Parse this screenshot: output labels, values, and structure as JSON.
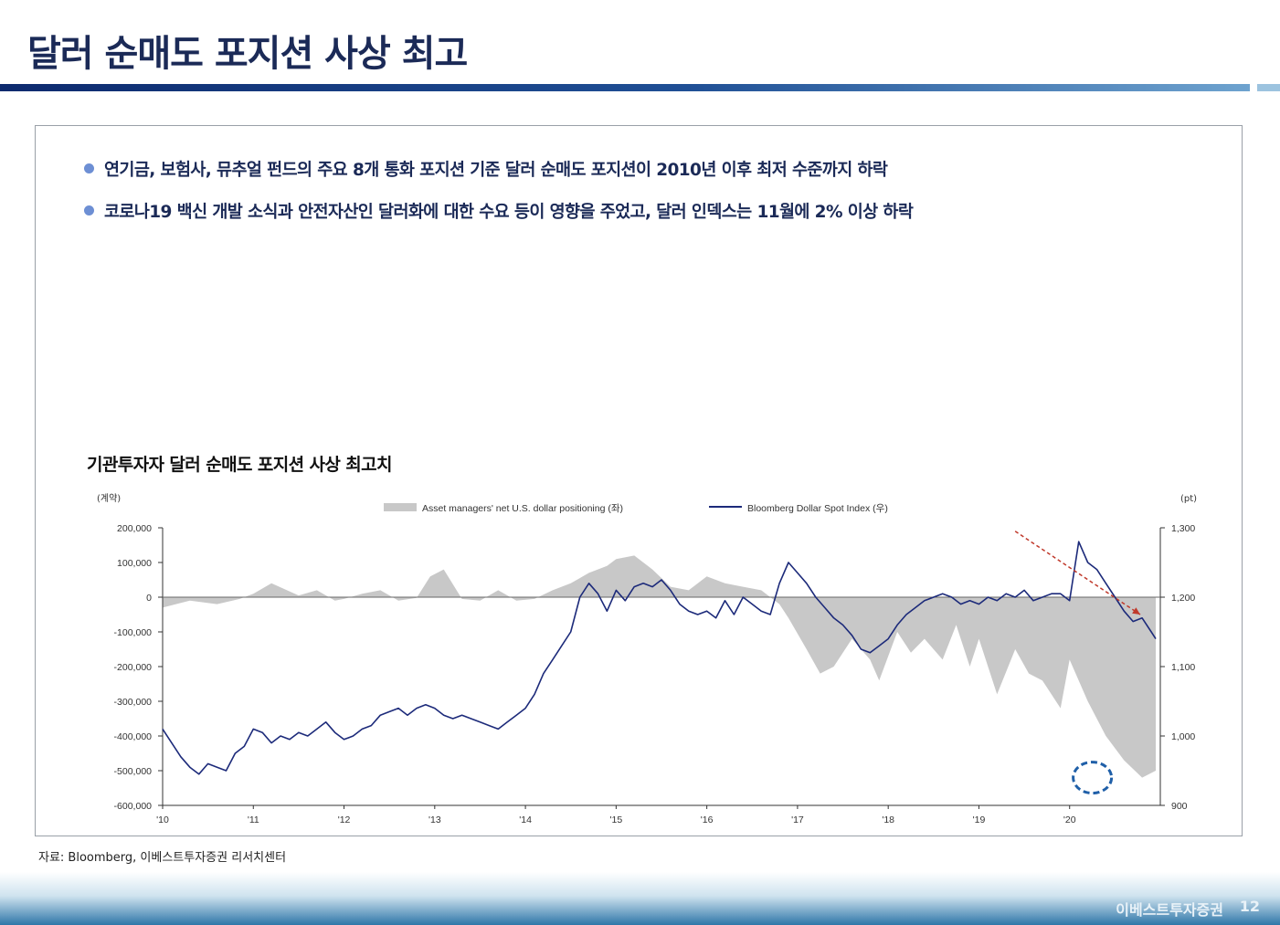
{
  "slide": {
    "title": "달러 순매도 포지션 사상 최고",
    "bullets": [
      "연기금, 보험사, 뮤추얼 펀드의 주요 8개 통화 포지션 기준 달러 순매도 포지션이 2010년 이후 최저 수준까지 하락",
      "코로나19 백신 개발 소식과 안전자산인 달러화에 대한 수요 등이 영향을 주었고, 달러 인덱스는 11월에 2% 이상 하락"
    ],
    "chart_title": "기관투자자 달러 순매도 포지션 사상 최고치",
    "source": "자료: Bloomberg, 이베스트투자증권 리서치센터",
    "footer_brand": "이베스트투자증권",
    "page_number": "12"
  },
  "colors": {
    "title": "#1b2a57",
    "area": "#c8c8c8",
    "line": "#1c2a7a",
    "arrow": "#c0392b",
    "circle": "#1f5fa8",
    "bullet_dot": "#6d8fd4"
  },
  "chart_data": {
    "type": "line",
    "left_unit": "(계약)",
    "right_unit": "(pt)",
    "legend": {
      "placement": "top-center",
      "area_label": "Asset managers' net U.S. dollar positioning (좌)",
      "line_label": "Bloomberg Dollar Spot Index (우)"
    },
    "x_ticks": [
      "'10",
      "'11",
      "'12",
      "'13",
      "'14",
      "'15",
      "'16",
      "'17",
      "'18",
      "'19",
      "'20"
    ],
    "x_range": [
      2010.0,
      2021.0
    ],
    "y_left": {
      "range": [
        -600000,
        200000
      ],
      "ticks": [
        "200,000",
        "100,000",
        "0",
        "-100,000",
        "-200,000",
        "-300,000",
        "-400,000",
        "-500,000",
        "-600,000"
      ],
      "tick_values": [
        200000,
        100000,
        0,
        -100000,
        -200000,
        -300000,
        -400000,
        -500000,
        -600000
      ]
    },
    "y_right": {
      "range": [
        900,
        1300
      ],
      "ticks": [
        "1,300",
        "1,200",
        "1,100",
        "1,000",
        "900"
      ],
      "tick_values": [
        1300,
        1200,
        1100,
        1000,
        900
      ]
    },
    "series": [
      {
        "name": "Asset managers' net U.S. dollar positioning (좌)",
        "axis": "left",
        "style": "area",
        "x": [
          2010.0,
          2010.3,
          2010.6,
          2010.85,
          2011.0,
          2011.2,
          2011.5,
          2011.7,
          2011.9,
          2012.0,
          2012.2,
          2012.4,
          2012.6,
          2012.8,
          2012.95,
          2013.1,
          2013.3,
          2013.5,
          2013.7,
          2013.9,
          2014.1,
          2014.3,
          2014.5,
          2014.7,
          2014.9,
          2015.0,
          2015.2,
          2015.4,
          2015.6,
          2015.8,
          2016.0,
          2016.2,
          2016.4,
          2016.6,
          2016.8,
          2016.9,
          2017.1,
          2017.25,
          2017.4,
          2017.6,
          2017.8,
          2017.9,
          2018.1,
          2018.25,
          2018.4,
          2018.6,
          2018.75,
          2018.9,
          2019.0,
          2019.2,
          2019.4,
          2019.55,
          2019.7,
          2019.9,
          2020.0,
          2020.2,
          2020.4,
          2020.6,
          2020.8,
          2020.95
        ],
        "y": [
          -30000,
          -10000,
          -20000,
          -5000,
          10000,
          40000,
          5000,
          20000,
          -10000,
          -5000,
          10000,
          20000,
          -10000,
          -2000,
          60000,
          80000,
          -5000,
          -10000,
          20000,
          -10000,
          -5000,
          20000,
          40000,
          70000,
          90000,
          110000,
          120000,
          80000,
          30000,
          20000,
          60000,
          40000,
          30000,
          20000,
          -20000,
          -60000,
          -150000,
          -220000,
          -200000,
          -120000,
          -180000,
          -240000,
          -100000,
          -160000,
          -120000,
          -180000,
          -80000,
          -200000,
          -120000,
          -280000,
          -150000,
          -220000,
          -240000,
          -320000,
          -180000,
          -300000,
          -400000,
          -470000,
          -520000,
          -500000
        ]
      },
      {
        "name": "Bloomberg Dollar Spot Index (우)",
        "axis": "right",
        "style": "line",
        "x": [
          2010.0,
          2010.1,
          2010.2,
          2010.3,
          2010.4,
          2010.5,
          2010.6,
          2010.7,
          2010.8,
          2010.9,
          2011.0,
          2011.1,
          2011.2,
          2011.3,
          2011.4,
          2011.5,
          2011.6,
          2011.7,
          2011.8,
          2011.9,
          2012.0,
          2012.1,
          2012.2,
          2012.3,
          2012.4,
          2012.5,
          2012.6,
          2012.7,
          2012.8,
          2012.9,
          2013.0,
          2013.1,
          2013.2,
          2013.3,
          2013.4,
          2013.5,
          2013.6,
          2013.7,
          2013.8,
          2013.9,
          2014.0,
          2014.1,
          2014.2,
          2014.3,
          2014.4,
          2014.5,
          2014.6,
          2014.7,
          2014.8,
          2014.9,
          2015.0,
          2015.1,
          2015.2,
          2015.3,
          2015.4,
          2015.5,
          2015.6,
          2015.7,
          2015.8,
          2015.9,
          2016.0,
          2016.1,
          2016.2,
          2016.3,
          2016.4,
          2016.5,
          2016.6,
          2016.7,
          2016.8,
          2016.9,
          2017.0,
          2017.1,
          2017.2,
          2017.3,
          2017.4,
          2017.5,
          2017.6,
          2017.7,
          2017.8,
          2017.9,
          2018.0,
          2018.1,
          2018.2,
          2018.3,
          2018.4,
          2018.5,
          2018.6,
          2018.7,
          2018.8,
          2018.9,
          2019.0,
          2019.1,
          2019.2,
          2019.3,
          2019.4,
          2019.5,
          2019.6,
          2019.7,
          2019.8,
          2019.9,
          2020.0,
          2020.1,
          2020.2,
          2020.3,
          2020.4,
          2020.5,
          2020.6,
          2020.7,
          2020.8,
          2020.9,
          2020.95
        ],
        "y": [
          1010,
          990,
          970,
          955,
          945,
          960,
          955,
          950,
          975,
          985,
          1010,
          1005,
          990,
          1000,
          995,
          1005,
          1000,
          1010,
          1020,
          1005,
          995,
          1000,
          1010,
          1015,
          1030,
          1035,
          1040,
          1030,
          1040,
          1045,
          1040,
          1030,
          1025,
          1030,
          1025,
          1020,
          1015,
          1010,
          1020,
          1030,
          1040,
          1060,
          1090,
          1110,
          1130,
          1150,
          1200,
          1220,
          1205,
          1180,
          1210,
          1195,
          1215,
          1220,
          1215,
          1225,
          1210,
          1190,
          1180,
          1175,
          1180,
          1170,
          1195,
          1175,
          1200,
          1190,
          1180,
          1175,
          1220,
          1250,
          1235,
          1220,
          1200,
          1185,
          1170,
          1160,
          1145,
          1125,
          1120,
          1130,
          1140,
          1160,
          1175,
          1185,
          1195,
          1200,
          1205,
          1200,
          1190,
          1195,
          1190,
          1200,
          1195,
          1205,
          1200,
          1210,
          1195,
          1200,
          1205,
          1205,
          1195,
          1280,
          1250,
          1240,
          1220,
          1200,
          1180,
          1165,
          1170,
          1150,
          1140
        ]
      }
    ],
    "annotations": [
      {
        "type": "arrow",
        "meaning": "downtrend",
        "from": [
          2019.4,
          1295
        ],
        "to": [
          2021.0,
          1175
        ]
      },
      {
        "type": "circle",
        "meaning": "record low positioning",
        "center": [
          2020.15,
          -520000
        ]
      }
    ]
  }
}
